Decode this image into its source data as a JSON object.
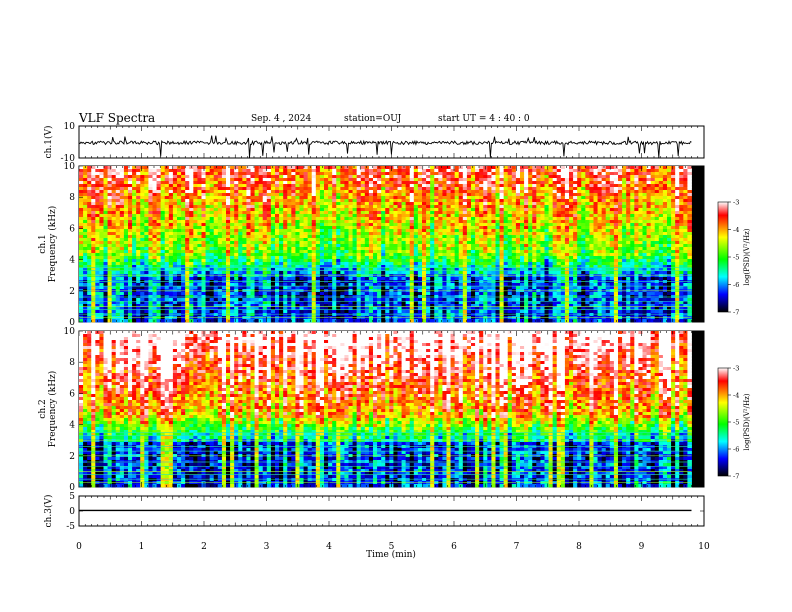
{
  "header": {
    "title": "VLF Spectra",
    "date": "Sep. 4 , 2024",
    "station": "station=OUJ",
    "start": "start UT = 4 : 40 : 0"
  },
  "chart_data": [
    {
      "type": "line",
      "name": "waveform-ch1",
      "ylabel": "ch.1(V)",
      "ylim": [
        -10,
        10
      ],
      "yticks": [
        "10",
        "-10"
      ],
      "xlim": [
        0,
        10
      ],
      "description_values": {
        "baseline": -0.5,
        "spike_min": -10,
        "spike_max": 4
      }
    },
    {
      "type": "heatmap",
      "name": "spectrogram-ch1",
      "ylabel_line1": "ch.1",
      "ylabel_line2": "Frequency (kHz)",
      "ylim": [
        0,
        10
      ],
      "yticks": [
        "0",
        "2",
        "4",
        "6",
        "8",
        "10"
      ],
      "xlim": [
        0,
        10
      ],
      "data_x_max": 9.8,
      "colorbar": {
        "label": "log(PSD)(V²/Hz)",
        "range": [
          -7,
          -3
        ],
        "ticks": [
          "-3",
          "-4",
          "-5",
          "-6",
          "-7"
        ]
      }
    },
    {
      "type": "heatmap",
      "name": "spectrogram-ch2",
      "ylabel_line1": "ch.2",
      "ylabel_line2": "Frequency (kHz)",
      "ylim": [
        0,
        10
      ],
      "yticks": [
        "0",
        "2",
        "4",
        "6",
        "8",
        "10"
      ],
      "xlim": [
        0,
        10
      ],
      "data_x_max": 9.8,
      "colorbar": {
        "label": "log(PSD)(V²/Hz)",
        "range": [
          -7,
          -3
        ],
        "ticks": [
          "-3",
          "-4",
          "-5",
          "-6",
          "-7"
        ]
      }
    },
    {
      "type": "line",
      "name": "waveform-ch3",
      "ylabel": "ch.3(V)",
      "ylim": [
        -5,
        5
      ],
      "yticks": [
        "5",
        "0",
        "-5"
      ],
      "xlim": [
        0,
        10
      ],
      "x": [
        0,
        9.8
      ],
      "y": [
        0.2,
        0.2
      ]
    }
  ],
  "xaxis": {
    "label": "Time (min)",
    "ticks": [
      "0",
      "1",
      "2",
      "3",
      "4",
      "5",
      "6",
      "7",
      "8",
      "9",
      "10"
    ]
  }
}
